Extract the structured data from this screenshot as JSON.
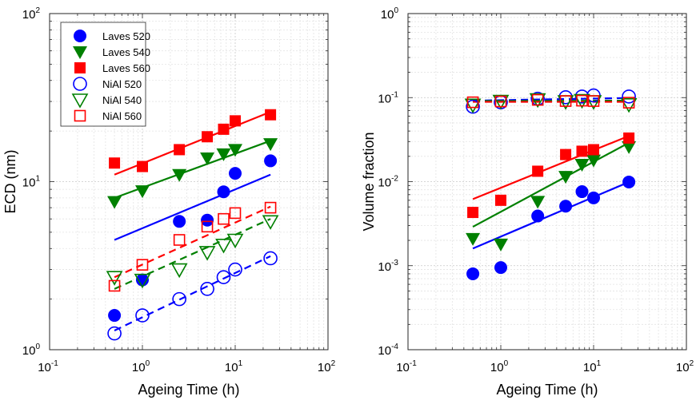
{
  "chart_data": [
    {
      "type": "scatter",
      "xlabel": "Ageing Time (h)",
      "ylabel": "ECD (nm)",
      "xscale": "log",
      "yscale": "log",
      "xlim": [
        0.1,
        100
      ],
      "ylim": [
        1,
        100
      ],
      "grid": true,
      "legend_position": "top-left",
      "xticks": [
        {
          "base": "10",
          "exp": "-1"
        },
        {
          "base": "10",
          "exp": "0"
        },
        {
          "base": "10",
          "exp": "1"
        },
        {
          "base": "10",
          "exp": "2"
        }
      ],
      "yticks": [
        {
          "base": "10",
          "exp": "0"
        },
        {
          "base": "10",
          "exp": "1"
        },
        {
          "base": "10",
          "exp": "2"
        }
      ],
      "series": [
        {
          "name": "Laves 520",
          "color": "#0000ff",
          "marker": "filled-circle",
          "line": "solid",
          "x": [
            0.5,
            1,
            2.5,
            5,
            7.5,
            10,
            24
          ],
          "y": [
            1.6,
            2.6,
            5.8,
            5.9,
            8.7,
            11.2,
            13.3
          ],
          "fit": [
            [
              0.5,
              4.5
            ],
            [
              24,
              11.0
            ]
          ]
        },
        {
          "name": "Laves 540",
          "color": "#008000",
          "marker": "filled-triangle-down",
          "line": "solid",
          "x": [
            0.5,
            1,
            2.5,
            5,
            7.5,
            10,
            24
          ],
          "y": [
            7.6,
            8.8,
            11.0,
            13.8,
            14.6,
            15.5,
            16.8
          ],
          "fit": [
            [
              0.5,
              8.0
            ],
            [
              24,
              17.5
            ]
          ]
        },
        {
          "name": "Laves 560",
          "color": "#ff0000",
          "marker": "filled-square",
          "line": "solid",
          "x": [
            0.5,
            1,
            2.5,
            5,
            7.5,
            10,
            24
          ],
          "y": [
            12.9,
            12.3,
            15.5,
            18.5,
            20.5,
            23.0,
            25.0
          ],
          "fit": [
            [
              0.5,
              11.0
            ],
            [
              24,
              26.0
            ]
          ]
        },
        {
          "name": "NiAl 520",
          "color": "#0000ff",
          "marker": "open-circle",
          "line": "dashed",
          "x": [
            0.5,
            1,
            2.5,
            5,
            7.5,
            10,
            24
          ],
          "y": [
            1.25,
            1.6,
            2.0,
            2.3,
            2.7,
            3.0,
            3.5
          ],
          "fit": [
            [
              0.5,
              1.3
            ],
            [
              24,
              3.6
            ]
          ]
        },
        {
          "name": "NiAl 540",
          "color": "#008000",
          "marker": "open-triangle-down",
          "line": "dashed",
          "x": [
            0.5,
            1,
            2.5,
            5,
            7.5,
            10,
            24
          ],
          "y": [
            2.7,
            2.6,
            3.0,
            3.8,
            4.2,
            4.5,
            5.8
          ],
          "fit": [
            [
              0.5,
              2.3
            ],
            [
              24,
              6.0
            ]
          ]
        },
        {
          "name": "NiAl 560",
          "color": "#ff0000",
          "marker": "open-square",
          "line": "dashed",
          "x": [
            0.5,
            1,
            2.5,
            5,
            7.5,
            10,
            24
          ],
          "y": [
            2.4,
            3.2,
            4.5,
            5.4,
            6.0,
            6.5,
            7.0
          ],
          "fit": [
            [
              0.5,
              2.7
            ],
            [
              24,
              7.1
            ]
          ]
        }
      ]
    },
    {
      "type": "scatter",
      "xlabel": "Ageing Time (h)",
      "ylabel": "Volume fraction",
      "xscale": "log",
      "yscale": "log",
      "xlim": [
        0.1,
        100
      ],
      "ylim": [
        0.0001,
        1
      ],
      "grid": true,
      "xticks": [
        {
          "base": "10",
          "exp": "-1"
        },
        {
          "base": "10",
          "exp": "0"
        },
        {
          "base": "10",
          "exp": "1"
        },
        {
          "base": "10",
          "exp": "2"
        }
      ],
      "yticks": [
        {
          "base": "10",
          "exp": "-4"
        },
        {
          "base": "10",
          "exp": "-3"
        },
        {
          "base": "10",
          "exp": "-2"
        },
        {
          "base": "10",
          "exp": "-1"
        },
        {
          "base": "10",
          "exp": "0"
        }
      ],
      "series": [
        {
          "name": "Laves 520",
          "color": "#0000ff",
          "marker": "filled-circle",
          "line": "solid",
          "x": [
            0.5,
            1,
            2.5,
            5,
            7.5,
            10,
            24
          ],
          "y": [
            0.0008,
            0.00095,
            0.0039,
            0.0051,
            0.0076,
            0.0064,
            0.0099
          ],
          "fit": [
            [
              0.5,
              0.0016
            ],
            [
              24,
              0.0099
            ]
          ]
        },
        {
          "name": "Laves 540",
          "color": "#008000",
          "marker": "filled-triangle-down",
          "line": "solid",
          "x": [
            0.5,
            1,
            2.5,
            5,
            7.5,
            10,
            24
          ],
          "y": [
            0.0021,
            0.0018,
            0.0058,
            0.0115,
            0.016,
            0.018,
            0.026
          ],
          "fit": [
            [
              0.5,
              0.0029
            ],
            [
              24,
              0.029
            ]
          ]
        },
        {
          "name": "Laves 560",
          "color": "#ff0000",
          "marker": "filled-square",
          "line": "solid",
          "x": [
            0.5,
            1,
            2.5,
            5,
            7.5,
            10,
            24
          ],
          "y": [
            0.0043,
            0.006,
            0.0133,
            0.021,
            0.023,
            0.024,
            0.033
          ],
          "fit": [
            [
              0.5,
              0.0062
            ],
            [
              24,
              0.035
            ]
          ]
        },
        {
          "name": "NiAl 520",
          "color": "#0000ff",
          "marker": "open-circle",
          "line": "dashed",
          "x": [
            0.5,
            1,
            2.5,
            5,
            7.5,
            10,
            24
          ],
          "y": [
            0.078,
            0.088,
            0.097,
            0.101,
            0.103,
            0.106,
            0.103
          ],
          "fit": [
            [
              0.5,
              0.092
            ],
            [
              24,
              0.099
            ]
          ]
        },
        {
          "name": "NiAl 540",
          "color": "#008000",
          "marker": "open-triangle-down",
          "line": "dashed",
          "x": [
            0.5,
            1,
            2.5,
            5,
            7.5,
            10,
            24
          ],
          "y": [
            0.082,
            0.091,
            0.095,
            0.09,
            0.093,
            0.09,
            0.083
          ],
          "fit": [
            [
              0.5,
              0.091
            ],
            [
              24,
              0.092
            ]
          ]
        },
        {
          "name": "NiAl 560",
          "color": "#ff0000",
          "marker": "open-square",
          "line": "dashed",
          "x": [
            0.5,
            1,
            2.5,
            5,
            7.5,
            10,
            24
          ],
          "y": [
            0.088,
            0.09,
            0.094,
            0.091,
            0.092,
            0.091,
            0.087
          ],
          "fit": [
            [
              0.5,
              0.089
            ],
            [
              24,
              0.089
            ]
          ]
        }
      ]
    }
  ]
}
